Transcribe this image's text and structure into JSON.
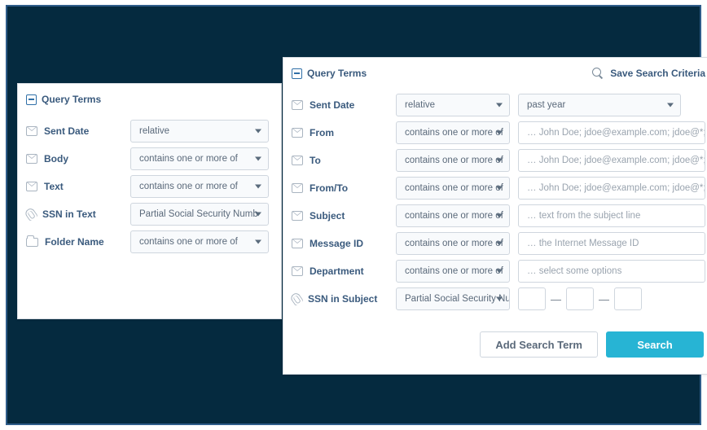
{
  "colors": {
    "frame_border": "#2f5d8a",
    "frame_bg": "#052a3f",
    "panel_bg": "#ffffff",
    "panel_border": "#d8dde3",
    "title_color": "#3a5a7d",
    "input_border": "#cfd6de",
    "input_bg": "#f8fafc",
    "placeholder": "#9aa4af",
    "primary_btn": "#27b4d4",
    "icon_gray": "#a9b4c0"
  },
  "left_panel": {
    "title": "Query Terms",
    "rows": {
      "sent_date": {
        "label": "Sent Date",
        "op": "relative"
      },
      "body": {
        "label": "Body",
        "op": "contains one or more of"
      },
      "text": {
        "label": "Text",
        "op": "contains one or more of"
      },
      "ssn_text": {
        "label": "SSN in Text",
        "op": "Partial Social Security Numb"
      },
      "folder": {
        "label": "Folder Name",
        "op": "contains one or more of"
      }
    }
  },
  "right_panel": {
    "title": "Query Terms",
    "save_label": "Save Search Criteria",
    "rows": {
      "sent_date": {
        "label": "Sent Date",
        "op": "relative",
        "sec": "past year"
      },
      "from": {
        "label": "From",
        "op": "contains one or more of",
        "ph": "… John Doe; jdoe@example.com; jdoe@*; *@example"
      },
      "to": {
        "label": "To",
        "op": "contains one or more of",
        "ph": "… John Doe; jdoe@example.com; jdoe@*; *@example"
      },
      "from_to": {
        "label": "From/To",
        "op": "contains one or more of",
        "ph": "… John Doe; jdoe@example.com; jdoe@*; *@example"
      },
      "subject": {
        "label": "Subject",
        "op": "contains one or more of",
        "ph": "… text from the subject line"
      },
      "message_id": {
        "label": "Message ID",
        "op": "contains one or more of",
        "ph": "… the Internet Message ID"
      },
      "department": {
        "label": "Department",
        "op": "contains one or more of",
        "ph": "… select some options"
      },
      "ssn_subject": {
        "label": "SSN in Subject",
        "op": "Partial Social Security Numb"
      }
    },
    "buttons": {
      "add": "Add Search Term",
      "search": "Search"
    }
  }
}
